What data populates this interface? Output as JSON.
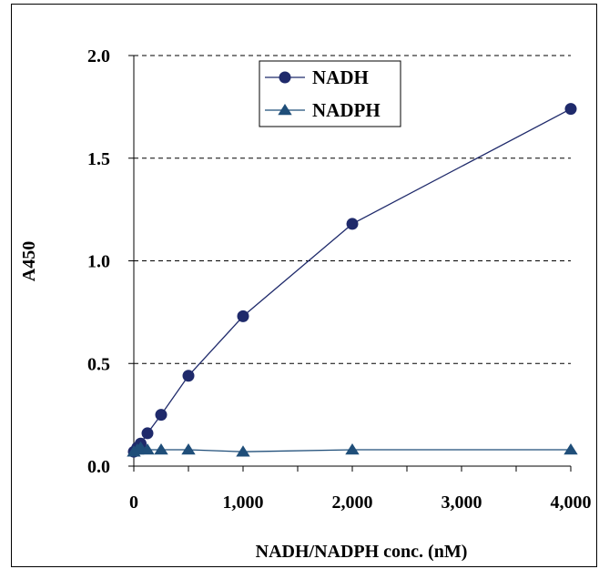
{
  "chart_data": {
    "type": "line",
    "title": "",
    "xlabel": "NADH/NADPH conc. (nM)",
    "ylabel": "A450",
    "xlim": [
      0,
      4000
    ],
    "ylim": [
      0,
      2.0
    ],
    "x_ticks": [
      "0",
      "1,000",
      "2,000",
      "3,000",
      "4,000"
    ],
    "x_tick_values": [
      0,
      1000,
      2000,
      3000,
      4000
    ],
    "y_ticks": [
      "0.0",
      "0.5",
      "1.0",
      "1.5",
      "2.0"
    ],
    "y_tick_values": [
      0,
      0.5,
      1.0,
      1.5,
      2.0
    ],
    "grid": "horizontal-dashed",
    "legend_position": "top-center",
    "series": [
      {
        "name": "NADH",
        "marker": "circle",
        "color": "#1f2a6b",
        "x": [
          0,
          31.25,
          62.5,
          125,
          250,
          500,
          1000,
          2000,
          4000
        ],
        "y": [
          0.07,
          0.09,
          0.11,
          0.16,
          0.25,
          0.44,
          0.73,
          1.18,
          1.74
        ]
      },
      {
        "name": "NADPH",
        "marker": "triangle",
        "color": "#1f4e79",
        "x": [
          0,
          31.25,
          62.5,
          125,
          250,
          500,
          1000,
          2000,
          4000
        ],
        "y": [
          0.07,
          0.08,
          0.09,
          0.08,
          0.08,
          0.08,
          0.07,
          0.08,
          0.08
        ]
      }
    ]
  }
}
